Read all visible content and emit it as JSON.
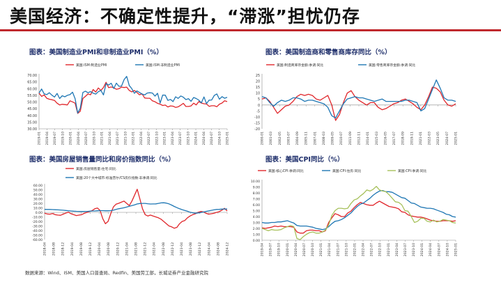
{
  "page": {
    "title": "美国经济：不确定性提升，“滞涨”担忧仍存",
    "source": "数据来源：Wind、ISM、美国人口普查局、Redfin、美国劳工部，长城证券产业金融研究院"
  },
  "colors": {
    "accent": "#c0282d",
    "red": "#e0262b",
    "blue": "#1f77b4",
    "green": "#a6c05a",
    "title_blue": "#1f2f6b"
  },
  "chart_data": [
    {
      "id": "pmi",
      "type": "line",
      "title": "图表：美国制造业PMI和非制造业PMI（%）",
      "ylim": [
        30,
        70
      ],
      "yticks": [
        30,
        35,
        40,
        45,
        50,
        55,
        60,
        65,
        70
      ],
      "ytick_labels": [
        "30.00",
        "35.00",
        "40.00",
        "45.00",
        "50.00",
        "55.00",
        "60.00",
        "65.00",
        "70.00"
      ],
      "xticks": [
        "2019-01",
        "2019-04",
        "2019-07",
        "2019-10",
        "2020-01",
        "2020-04",
        "2020-07",
        "2020-10",
        "2021-01",
        "2021-04",
        "2021-07",
        "2021-10",
        "2022-01",
        "2022-04",
        "2022-07",
        "2022-10",
        "2023-01",
        "2023-04",
        "2023-07",
        "2023-10",
        "2024-01",
        "2024-04",
        "2024-07",
        "2024-10",
        "2025-01"
      ],
      "series": [
        {
          "name": "美国:ISM:制造业PMI",
          "color": "#e0262b",
          "values": [
            56.6,
            54.2,
            55.3,
            52.8,
            52.1,
            51.7,
            51.2,
            49.1,
            47.8,
            48.3,
            48.1,
            47.8,
            50.9,
            50.1,
            49.1,
            41.5,
            43.1,
            52.6,
            54.2,
            56.0,
            55.4,
            59.3,
            57.5,
            60.5,
            58.7,
            60.8,
            64.7,
            60.7,
            61.2,
            60.6,
            59.5,
            59.9,
            61.1,
            60.8,
            61.1,
            58.6,
            57.6,
            58.6,
            57.1,
            55.4,
            56.1,
            53.0,
            52.8,
            52.8,
            50.9,
            50.2,
            49.0,
            48.4,
            47.4,
            47.7,
            46.3,
            47.1,
            46.9,
            46.0,
            46.4,
            47.6,
            49.0,
            46.7,
            46.7,
            47.1,
            49.1,
            47.8,
            50.3,
            49.2,
            48.7,
            48.5,
            46.8,
            47.2,
            47.2,
            46.5,
            48.4,
            49.2,
            50.9,
            50.3
          ]
        },
        {
          "name": "美国:ISM:非制造业PMI",
          "color": "#1f77b4",
          "values": [
            56.7,
            59.7,
            56.1,
            55.5,
            56.9,
            55.1,
            53.7,
            56.4,
            52.6,
            54.7,
            53.9,
            55.0,
            55.5,
            57.3,
            52.5,
            41.8,
            45.4,
            57.1,
            58.1,
            56.9,
            57.8,
            56.6,
            55.9,
            57.7,
            58.7,
            55.3,
            63.7,
            62.7,
            64.0,
            60.1,
            64.1,
            61.7,
            61.9,
            66.7,
            69.1,
            62.3,
            59.9,
            56.5,
            58.3,
            57.1,
            55.9,
            55.3,
            56.7,
            56.9,
            56.7,
            54.4,
            56.5,
            49.2,
            55.2,
            55.1,
            51.2,
            51.9,
            50.3,
            53.9,
            52.7,
            54.5,
            53.6,
            51.8,
            52.5,
            50.5,
            53.4,
            52.6,
            51.4,
            49.4,
            53.8,
            48.8,
            51.4,
            51.5,
            54.9,
            56.0,
            52.1,
            54.0,
            52.8,
            53.5
          ]
        }
      ]
    },
    {
      "id": "inventory",
      "type": "line",
      "title": "图表：美国制造商和零售商库存同比（%）",
      "ylim": [
        -20,
        25
      ],
      "yticks": [
        -20,
        -15,
        -10,
        -5,
        0,
        5,
        10,
        15,
        20,
        25
      ],
      "ytick_labels": [
        "-20",
        "-15",
        "-10",
        "-5",
        "0",
        "5",
        "10",
        "15",
        "20",
        "25"
      ],
      "xticks": [
        "2000-01",
        "2001-03",
        "2002-05",
        "2003-07",
        "2004-09",
        "2005-11",
        "2007-01",
        "2008-03",
        "2009-05",
        "2010-07",
        "2011-09",
        "2012-11",
        "2014-01",
        "2015-03",
        "2016-05",
        "2017-07",
        "2018-09",
        "2019-11",
        "2021-01",
        "2022-03",
        "2023-05",
        "2024-07",
        "2025-01"
      ],
      "series": [
        {
          "name": "美国:制造商库存金额:季调:同比",
          "color": "#e0262b",
          "x": [
            2000.0,
            2000.5,
            2001.0,
            2001.5,
            2002.0,
            2002.5,
            2003.0,
            2003.5,
            2004.0,
            2004.5,
            2005.0,
            2005.5,
            2006.0,
            2006.5,
            2007.0,
            2007.5,
            2008.0,
            2008.5,
            2009.0,
            2009.5,
            2010.0,
            2010.5,
            2011.0,
            2011.5,
            2012.0,
            2012.5,
            2013.0,
            2013.5,
            2014.0,
            2014.5,
            2015.0,
            2015.5,
            2016.0,
            2016.5,
            2017.0,
            2017.5,
            2018.0,
            2018.5,
            2019.0,
            2019.5,
            2020.0,
            2020.5,
            2021.0,
            2021.5,
            2022.0,
            2022.5,
            2023.0,
            2023.5,
            2024.0,
            2024.5,
            2025.0
          ],
          "values": [
            5.0,
            6.0,
            3.0,
            -2.0,
            -7.0,
            -4.0,
            -1.0,
            0.0,
            3.0,
            7.0,
            9.0,
            8.0,
            9.0,
            8.0,
            5.0,
            4.0,
            6.0,
            8.0,
            0.0,
            -13.0,
            -8.0,
            2.0,
            10.0,
            12.0,
            7.0,
            4.0,
            2.0,
            0.0,
            2.0,
            2.0,
            -2.0,
            -4.0,
            -3.0,
            -1.0,
            1.0,
            2.0,
            4.0,
            5.0,
            3.0,
            1.0,
            -2.0,
            -4.0,
            0.0,
            7.0,
            15.0,
            14.0,
            11.0,
            4.0,
            0.0,
            -1.0,
            1.0
          ]
        },
        {
          "name": "美国:零售商库存金额:季调:同比",
          "color": "#1f77b4",
          "x": [
            2000.0,
            2000.5,
            2001.0,
            2001.5,
            2002.0,
            2002.5,
            2003.0,
            2003.5,
            2004.0,
            2004.5,
            2005.0,
            2005.5,
            2006.0,
            2006.5,
            2007.0,
            2007.5,
            2008.0,
            2008.5,
            2009.0,
            2009.5,
            2010.0,
            2010.5,
            2011.0,
            2011.5,
            2012.0,
            2012.5,
            2013.0,
            2013.5,
            2014.0,
            2014.5,
            2015.0,
            2015.5,
            2016.0,
            2016.5,
            2017.0,
            2017.5,
            2018.0,
            2018.5,
            2019.0,
            2019.5,
            2020.0,
            2020.5,
            2021.0,
            2021.5,
            2022.0,
            2022.5,
            2023.0,
            2023.5,
            2024.0,
            2024.5,
            2025.0
          ],
          "values": [
            7.0,
            6.0,
            2.0,
            -1.0,
            2.0,
            4.0,
            3.0,
            4.0,
            6.0,
            6.0,
            5.0,
            3.0,
            4.0,
            4.0,
            3.0,
            2.0,
            1.0,
            -2.0,
            -9.0,
            -11.0,
            -5.0,
            1.0,
            5.0,
            6.0,
            7.0,
            6.0,
            6.0,
            5.0,
            4.0,
            3.0,
            4.0,
            5.0,
            3.0,
            3.0,
            3.0,
            3.0,
            3.0,
            4.0,
            4.0,
            3.0,
            2.0,
            -5.0,
            -3.0,
            5.0,
            13.0,
            21.0,
            14.0,
            6.0,
            4.0,
            4.0,
            3.0
          ]
        }
      ]
    },
    {
      "id": "housing",
      "type": "line",
      "title": "图表：美国房屋销售量同比和房价指数同比（%）",
      "ylim": [
        -60,
        60
      ],
      "yticks": [
        -60,
        -50,
        -40,
        -30,
        -20,
        -10,
        0,
        10,
        20,
        30,
        40,
        50,
        60
      ],
      "ytick_labels": [
        "-60.00",
        "-50.00",
        "-40.00",
        "-30.00",
        "-20.00",
        "-10.00",
        "0.00",
        "10.00",
        "20.00",
        "30.00",
        "40.00",
        "50.00",
        "60.00"
      ],
      "xticks": [
        "2018-04",
        "2018-08",
        "2018-12",
        "2019-04",
        "2019-08",
        "2019-12",
        "2020-04",
        "2020-08",
        "2020-12",
        "2021-04",
        "2021-08",
        "2021-12",
        "2022-04",
        "2022-08",
        "2022-12",
        "2023-04",
        "2023-08",
        "2023-12",
        "2024-04",
        "2024-08",
        "2024-12"
      ],
      "series": [
        {
          "name": "美国:房屋销售量:住宅:同比",
          "color": "#e0262b",
          "values": [
            -2.0,
            -3.5,
            -4.0,
            -2.5,
            -5.0,
            -6.0,
            -6.5,
            -4.0,
            -1.5,
            0.5,
            -3.0,
            -5.0,
            -7.0,
            -6.0,
            -5.0,
            -2.0,
            0.0,
            2.0,
            4.0,
            8.0,
            9.5,
            4.0,
            -14.0,
            -25.0,
            -20.0,
            -3.0,
            12.0,
            18.0,
            20.0,
            22.5,
            25.0,
            20.0,
            15.0,
            25.0,
            38.0,
            51.0,
            30.0,
            8.0,
            -5.0,
            -8.0,
            -6.0,
            -8.0,
            -10.0,
            -12.0,
            -15.0,
            -20.0,
            -25.0,
            -30.0,
            -32.0,
            -35.0,
            -33.0,
            -25.0,
            -20.0,
            -18.0,
            -12.0,
            -8.0,
            -5.0,
            -3.0,
            0.0,
            2.0,
            1.0,
            -2.0,
            -4.0,
            -3.0,
            -2.0,
            0.0,
            1.5,
            5.0,
            9.0,
            3.0
          ]
        },
        {
          "name": "美国:20个大中城市:标准普尔/CS房价指数:非季调:同比",
          "color": "#1f77b4",
          "values": [
            6.6,
            6.5,
            6.4,
            6.2,
            5.8,
            5.5,
            5.2,
            4.7,
            4.2,
            3.6,
            3.0,
            2.6,
            2.3,
            2.2,
            2.0,
            2.1,
            2.2,
            2.6,
            3.0,
            3.1,
            3.5,
            3.9,
            3.9,
            3.6,
            3.5,
            3.9,
            4.8,
            6.6,
            8.0,
            9.1,
            10.1,
            11.7,
            13.4,
            14.9,
            16.6,
            18.6,
            19.6,
            19.8,
            19.9,
            19.1,
            18.4,
            18.6,
            18.8,
            19.8,
            20.9,
            21.2,
            20.5,
            18.7,
            16.1,
            13.1,
            10.4,
            8.0,
            6.0,
            4.3,
            2.5,
            0.3,
            -0.9,
            -1.8,
            -1.3,
            -0.5,
            0.8,
            2.1,
            3.2,
            4.5,
            5.5,
            6.5,
            6.6,
            7.2,
            7.5,
            7.4
          ]
        }
      ]
    },
    {
      "id": "cpi",
      "type": "line",
      "title": "图表：美国CPI同比（%）",
      "ylim": [
        0,
        10
      ],
      "yticks": [
        0,
        1,
        2,
        3,
        4,
        5,
        6,
        7,
        8,
        9,
        10
      ],
      "ytick_labels": [
        "0.00",
        "1.00",
        "2.00",
        "3.00",
        "4.00",
        "5.00",
        "6.00",
        "7.00",
        "8.00",
        "9.00",
        "10.00"
      ],
      "xticks": [
        "2019-04",
        "2019-07",
        "2019-10",
        "2020-01",
        "2020-04",
        "2020-07",
        "2020-10",
        "2021-01",
        "2021-04",
        "2021-07",
        "2021-10",
        "2022-01",
        "2022-04",
        "2022-07",
        "2022-10",
        "2023-01",
        "2023-04",
        "2023-07",
        "2023-10",
        "2024-01",
        "2024-04",
        "2024-07",
        "2024-10",
        "2025-01"
      ],
      "series": [
        {
          "name": "美国:核心CPI:季调:同比",
          "color": "#e0262b",
          "values": [
            2.1,
            2.0,
            2.1,
            2.2,
            2.4,
            2.3,
            2.4,
            2.3,
            2.3,
            2.3,
            2.2,
            1.4,
            1.2,
            1.2,
            1.6,
            1.7,
            1.7,
            1.6,
            1.6,
            1.4,
            1.6,
            3.0,
            3.8,
            4.5,
            4.3,
            4.0,
            4.0,
            4.6,
            4.9,
            5.5,
            6.0,
            6.4,
            6.2,
            6.0,
            5.9,
            5.9,
            6.3,
            6.6,
            6.3,
            6.0,
            5.7,
            5.6,
            5.5,
            5.3,
            4.8,
            4.7,
            4.3,
            4.1,
            4.0,
            3.9,
            3.9,
            3.8,
            3.6,
            3.4,
            3.3,
            3.2,
            3.2,
            3.3,
            3.3,
            3.3,
            3.2,
            3.3
          ]
        },
        {
          "name": "美国:CPI:住房:同比",
          "color": "#1f77b4",
          "values": [
            3.0,
            2.9,
            2.9,
            3.0,
            3.0,
            3.1,
            3.1,
            3.2,
            3.3,
            3.1,
            2.9,
            2.5,
            2.4,
            2.4,
            2.4,
            2.3,
            2.2,
            2.0,
            1.9,
            1.8,
            1.9,
            2.3,
            2.8,
            3.2,
            3.3,
            3.5,
            3.8,
            4.2,
            4.6,
            5.2,
            5.7,
            6.1,
            6.3,
            6.7,
            7.1,
            7.6,
            8.0,
            8.3,
            8.4,
            8.2,
            8.2,
            8.1,
            7.8,
            7.5,
            7.2,
            7.1,
            6.7,
            6.3,
            6.2,
            5.9,
            5.6,
            5.5,
            5.4,
            5.4,
            5.3,
            5.1,
            4.9,
            4.7,
            4.4,
            4.3,
            4.0,
            3.9
          ]
        },
        {
          "name": "美国:CPI:季调:同比",
          "color": "#a6c05a",
          "values": [
            2.0,
            1.8,
            1.6,
            1.8,
            1.7,
            1.7,
            1.8,
            2.1,
            2.3,
            2.5,
            2.3,
            0.3,
            0.1,
            0.6,
            1.0,
            1.3,
            1.4,
            1.2,
            1.2,
            1.4,
            1.7,
            2.6,
            4.2,
            5.0,
            5.4,
            5.4,
            5.3,
            5.4,
            6.2,
            6.8,
            7.0,
            7.5,
            7.9,
            8.5,
            8.3,
            8.6,
            9.1,
            8.5,
            8.3,
            8.2,
            7.7,
            7.1,
            6.5,
            6.4,
            6.0,
            5.0,
            4.9,
            4.0,
            3.0,
            3.2,
            3.7,
            3.7,
            3.2,
            3.1,
            3.4,
            3.1,
            3.2,
            3.5,
            3.4,
            3.3,
            3.0,
            2.9
          ]
        }
      ]
    }
  ]
}
